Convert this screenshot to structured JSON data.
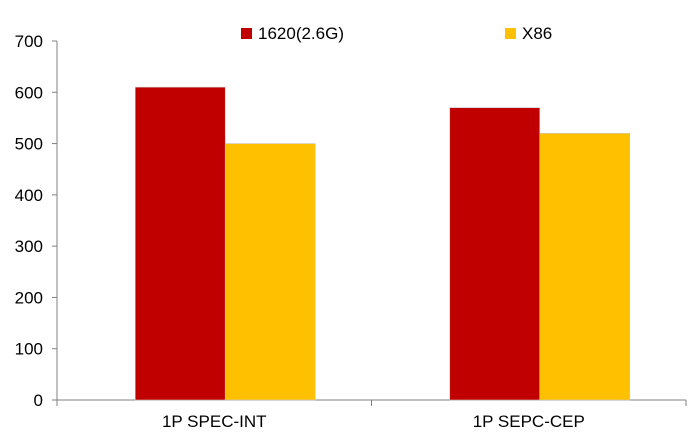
{
  "chart_data": {
    "type": "bar",
    "categories": [
      "1P SPEC-INT",
      "1P SEPC-CEP"
    ],
    "series": [
      {
        "name": "1620(2.6G)",
        "values": [
          610,
          570
        ],
        "color": "#c00000"
      },
      {
        "name": "X86",
        "values": [
          500,
          520
        ],
        "color": "#ffc000"
      }
    ],
    "ylim": [
      0,
      700
    ],
    "yticks": [
      "0",
      "100",
      "200",
      "300",
      "400",
      "500",
      "600",
      "700"
    ],
    "grid": false,
    "legend": "top-center",
    "title": "",
    "xlabel": "",
    "ylabel": ""
  }
}
